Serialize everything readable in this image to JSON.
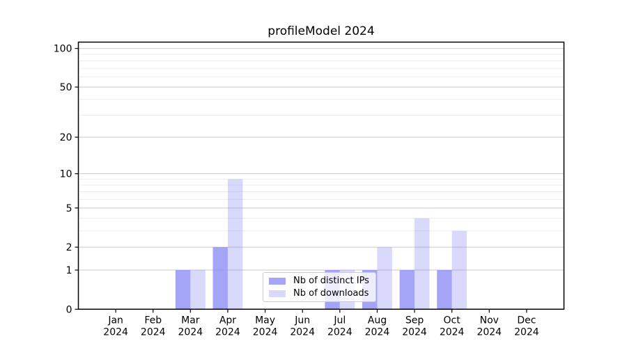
{
  "title": "profileModel 2024",
  "chart_data": {
    "type": "bar",
    "title": "profileModel 2024",
    "scale": "log1p",
    "categories": [
      "Jan",
      "Feb",
      "Mar",
      "Apr",
      "May",
      "Jun",
      "Jul",
      "Aug",
      "Sep",
      "Oct",
      "Nov",
      "Dec"
    ],
    "category_year": "2024",
    "series": [
      {
        "name": "Nb of distinct IPs",
        "color": "rgba(130,130,245,0.72)",
        "values": [
          0,
          0,
          1,
          2,
          0,
          0,
          1,
          1,
          1,
          1,
          0,
          0
        ]
      },
      {
        "name": "Nb of downloads",
        "color": "rgba(130,130,245,0.30)",
        "values": [
          0,
          0,
          1,
          9,
          0,
          0,
          1,
          2,
          4,
          3,
          0,
          0
        ]
      }
    ],
    "y_major_ticks": [
      0,
      1,
      2,
      5,
      10,
      20,
      50,
      100
    ],
    "y_minor_ticks": [
      3,
      4,
      6,
      7,
      8,
      9,
      30,
      40,
      60,
      70,
      80,
      90
    ],
    "ylim": [
      0,
      112
    ],
    "xlabel": "",
    "ylabel": "",
    "grid": "both",
    "legend_position": "lower center"
  },
  "colors": {
    "bar_dark": "rgba(130,130,245,0.72)",
    "bar_light": "rgba(130,130,245,0.30)",
    "major_grid": "#c9c9c9",
    "minor_grid": "#ececec",
    "axis": "#000000",
    "tick_label": "#000000",
    "legend_border": "#cccccc",
    "background": "#ffffff"
  }
}
